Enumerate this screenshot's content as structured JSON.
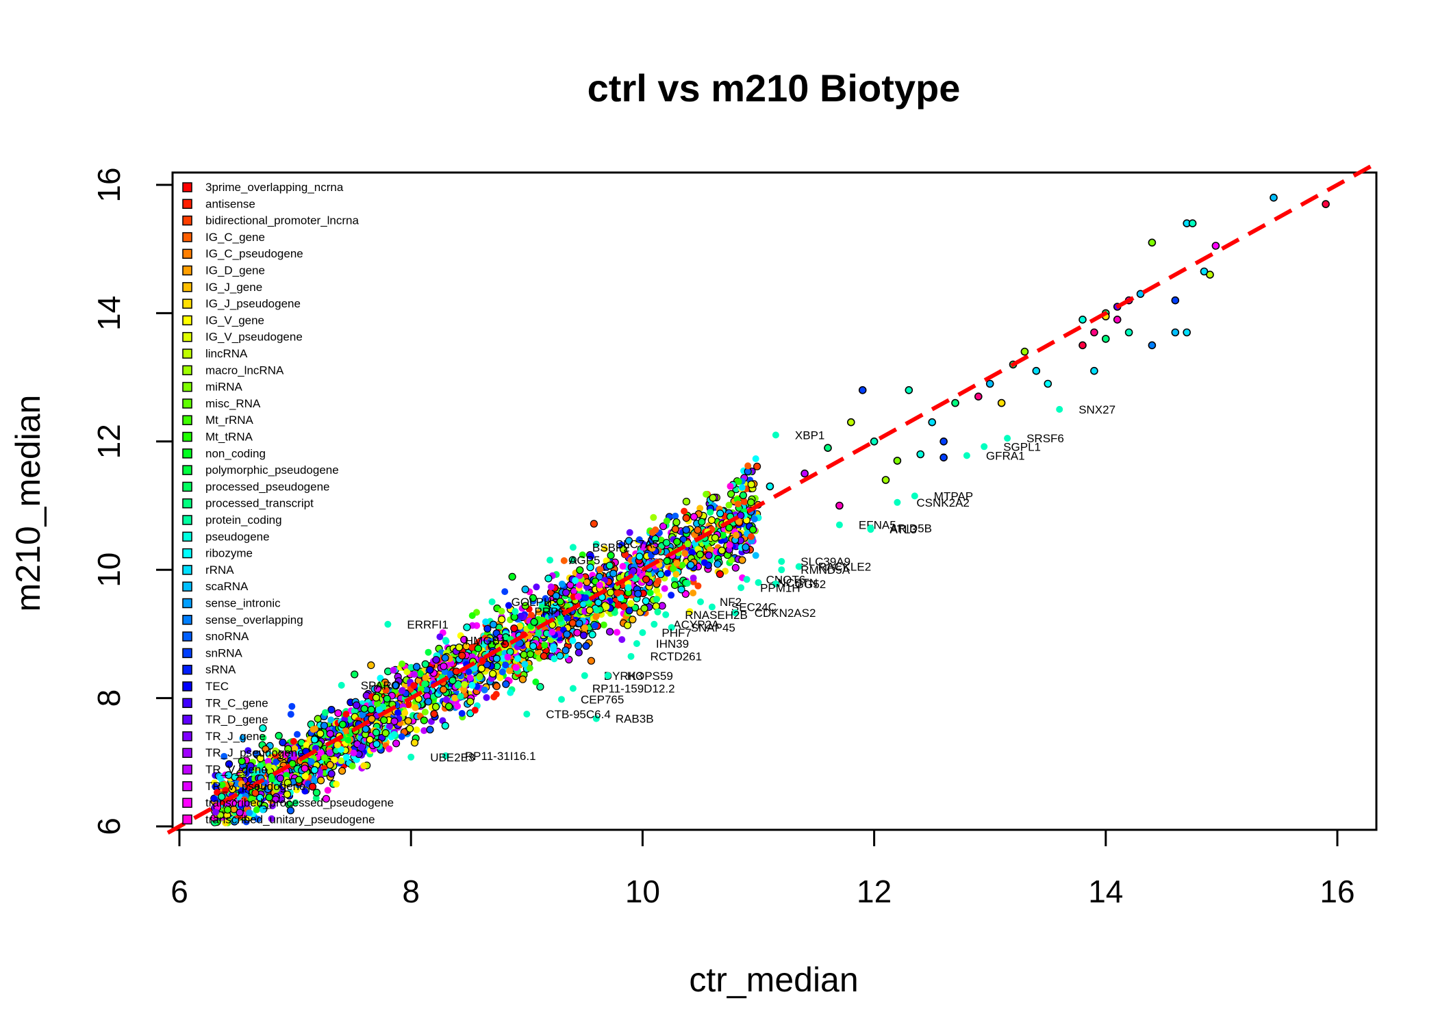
{
  "chart_data": {
    "type": "scatter",
    "title": "ctrl vs m210 Biotype",
    "xlabel": "ctr_median",
    "ylabel": "m210_median",
    "xlim": [
      6,
      16
    ],
    "ylim": [
      6,
      16
    ],
    "xticks": [
      6,
      8,
      10,
      12,
      14,
      16
    ],
    "yticks": [
      6,
      8,
      10,
      12,
      14,
      16
    ],
    "reference_line": {
      "slope": 1,
      "intercept": 0,
      "color": "#ff0000",
      "style": "dashed"
    },
    "legend_position": "top-left",
    "legend": [
      {
        "label": "3prime_overlapping_ncrna",
        "color": "#ff0000"
      },
      {
        "label": "antisense",
        "color": "#ff1f00"
      },
      {
        "label": "bidirectional_promoter_lncrna",
        "color": "#ff3f00"
      },
      {
        "label": "IG_C_gene",
        "color": "#ff5f00"
      },
      {
        "label": "IG_C_pseudogene",
        "color": "#ff7f00"
      },
      {
        "label": "IG_D_gene",
        "color": "#ff9f00"
      },
      {
        "label": "IG_J_gene",
        "color": "#ffbf00"
      },
      {
        "label": "IG_J_pseudogene",
        "color": "#ffdf00"
      },
      {
        "label": "IG_V_gene",
        "color": "#ffff00"
      },
      {
        "label": "IG_V_pseudogene",
        "color": "#dfff00"
      },
      {
        "label": "lincRNA",
        "color": "#bfff00"
      },
      {
        "label": "macro_lncRNA",
        "color": "#9fff00"
      },
      {
        "label": "miRNA",
        "color": "#7fff00"
      },
      {
        "label": "misc_RNA",
        "color": "#5fff00"
      },
      {
        "label": "Mt_rRNA",
        "color": "#3fff00"
      },
      {
        "label": "Mt_tRNA",
        "color": "#1fff00"
      },
      {
        "label": "non_coding",
        "color": "#00ff1f"
      },
      {
        "label": "polymorphic_pseudogene",
        "color": "#00ff3f"
      },
      {
        "label": "processed_pseudogene",
        "color": "#00ff5f"
      },
      {
        "label": "processed_transcript",
        "color": "#00ff7f"
      },
      {
        "label": "protein_coding",
        "color": "#00ff9f"
      },
      {
        "label": "pseudogene",
        "color": "#00ffdf"
      },
      {
        "label": "ribozyme",
        "color": "#00ffff"
      },
      {
        "label": "rRNA",
        "color": "#00dfff"
      },
      {
        "label": "scaRNA",
        "color": "#00bfff"
      },
      {
        "label": "sense_intronic",
        "color": "#009fff"
      },
      {
        "label": "sense_overlapping",
        "color": "#007fff"
      },
      {
        "label": "snoRNA",
        "color": "#005fff"
      },
      {
        "label": "snRNA",
        "color": "#003fff"
      },
      {
        "label": "sRNA",
        "color": "#001fff"
      },
      {
        "label": "TEC",
        "color": "#0000ff"
      },
      {
        "label": "TR_C_gene",
        "color": "#3f00ff"
      },
      {
        "label": "TR_D_gene",
        "color": "#5f00ff"
      },
      {
        "label": "TR_J_gene",
        "color": "#7f00ff"
      },
      {
        "label": "TR_J_pseudogene",
        "color": "#9f00ff"
      },
      {
        "label": "TR_V_gene",
        "color": "#bf00ff"
      },
      {
        "label": "TR_V_pseudogene",
        "color": "#df00ff"
      },
      {
        "label": "transcribed_processed_pseudogene",
        "color": "#ff00ff"
      },
      {
        "label": "transcribed_unitary_pseudogene",
        "color": "#ff00df"
      }
    ],
    "cluster": {
      "description": "dense cloud of gene points around identity line",
      "x_range": [
        6.3,
        11.0
      ],
      "spread": 0.45,
      "count": 2600
    },
    "points": [
      {
        "x": 15.9,
        "y": 15.7,
        "c": "#ff0040"
      },
      {
        "x": 15.45,
        "y": 15.8,
        "c": "#00bfff"
      },
      {
        "x": 14.7,
        "y": 15.4,
        "c": "#00dfff"
      },
      {
        "x": 14.75,
        "y": 15.4,
        "c": "#00ffbf"
      },
      {
        "x": 14.95,
        "y": 15.05,
        "c": "#ff00ff"
      },
      {
        "x": 14.4,
        "y": 15.1,
        "c": "#7fff00"
      },
      {
        "x": 14.85,
        "y": 14.65,
        "c": "#00dfff"
      },
      {
        "x": 14.9,
        "y": 14.6,
        "c": "#bfff00"
      },
      {
        "x": 14.3,
        "y": 14.3,
        "c": "#00bfff"
      },
      {
        "x": 14.6,
        "y": 14.2,
        "c": "#003fff"
      },
      {
        "x": 14.2,
        "y": 14.2,
        "c": "#ff00bf"
      },
      {
        "x": 14.1,
        "y": 14.1,
        "c": "#5f00ff"
      },
      {
        "x": 14.0,
        "y": 14.0,
        "c": "#00ff7f"
      },
      {
        "x": 13.8,
        "y": 13.9,
        "c": "#00ffdf"
      },
      {
        "x": 14.0,
        "y": 13.95,
        "c": "#ffdf00"
      },
      {
        "x": 14.1,
        "y": 13.9,
        "c": "#ff00bf"
      },
      {
        "x": 13.9,
        "y": 13.7,
        "c": "#ff0080"
      },
      {
        "x": 14.2,
        "y": 13.7,
        "c": "#00ffbf"
      },
      {
        "x": 14.6,
        "y": 13.7,
        "c": "#00bfff"
      },
      {
        "x": 14.7,
        "y": 13.7,
        "c": "#00dfff"
      },
      {
        "x": 14.4,
        "y": 13.5,
        "c": "#007fff"
      },
      {
        "x": 13.8,
        "y": 13.5,
        "c": "#ff0040"
      },
      {
        "x": 14.0,
        "y": 13.6,
        "c": "#00ff7f"
      },
      {
        "x": 13.3,
        "y": 13.4,
        "c": "#9fff00"
      },
      {
        "x": 13.2,
        "y": 13.2,
        "c": "#00ff7f"
      },
      {
        "x": 13.4,
        "y": 13.1,
        "c": "#00dfff"
      },
      {
        "x": 13.9,
        "y": 13.1,
        "c": "#00dfff"
      },
      {
        "x": 13.5,
        "y": 12.9,
        "c": "#00ffff"
      },
      {
        "x": 13.0,
        "y": 12.9,
        "c": "#00bfff"
      },
      {
        "x": 12.9,
        "y": 12.7,
        "c": "#ff0080"
      },
      {
        "x": 12.3,
        "y": 12.8,
        "c": "#00ffbf"
      },
      {
        "x": 11.9,
        "y": 12.8,
        "c": "#003fff"
      },
      {
        "x": 12.7,
        "y": 12.6,
        "c": "#00ff7f"
      },
      {
        "x": 13.1,
        "y": 12.6,
        "c": "#ffdf00"
      },
      {
        "x": 11.8,
        "y": 12.3,
        "c": "#bfff00"
      },
      {
        "x": 12.0,
        "y": 12.0,
        "c": "#00ffbf"
      },
      {
        "x": 12.5,
        "y": 12.3,
        "c": "#00dfff"
      },
      {
        "x": 12.6,
        "y": 12.0,
        "c": "#003fff"
      },
      {
        "x": 12.2,
        "y": 11.7,
        "c": "#7fff00"
      },
      {
        "x": 11.6,
        "y": 11.9,
        "c": "#00ff7f"
      },
      {
        "x": 11.4,
        "y": 11.5,
        "c": "#bf00ff"
      },
      {
        "x": 12.4,
        "y": 11.8,
        "c": "#00ffdf"
      },
      {
        "x": 12.6,
        "y": 11.75,
        "c": "#003fff"
      },
      {
        "x": 11.7,
        "y": 11.0,
        "c": "#ff00bf"
      },
      {
        "x": 11.1,
        "y": 11.3,
        "c": "#00ffff"
      },
      {
        "x": 12.1,
        "y": 11.4,
        "c": "#9fff00"
      }
    ],
    "labeled_points": [
      {
        "name": "SNX27",
        "x": 13.6,
        "y": 12.5
      },
      {
        "name": "XBP1",
        "x": 11.15,
        "y": 12.1
      },
      {
        "name": "SRSF6",
        "x": 13.15,
        "y": 12.05
      },
      {
        "name": "SGPL1",
        "x": 12.95,
        "y": 11.92
      },
      {
        "name": "GFRA1",
        "x": 12.8,
        "y": 11.78
      },
      {
        "name": "MTPAP",
        "x": 12.35,
        "y": 11.15
      },
      {
        "name": "CSNK2A2",
        "x": 12.2,
        "y": 11.05
      },
      {
        "name": "EFNA5",
        "x": 11.7,
        "y": 10.7
      },
      {
        "name": "ARID5B",
        "x": 11.97,
        "y": 10.65
      },
      {
        "name": "ATL3",
        "x": 11.97,
        "y": 10.63
      },
      {
        "name": "SLC39A9",
        "x": 11.2,
        "y": 10.13
      },
      {
        "name": "RACKLE2",
        "x": 11.35,
        "y": 10.05
      },
      {
        "name": "RMND5A",
        "x": 11.2,
        "y": 10.0
      },
      {
        "name": "CNOT6",
        "x": 10.9,
        "y": 9.85
      },
      {
        "name": "NCSTN",
        "x": 11.0,
        "y": 9.8
      },
      {
        "name": "GG52",
        "x": 11.15,
        "y": 9.78
      },
      {
        "name": "PPM1H",
        "x": 10.85,
        "y": 9.72
      },
      {
        "name": "NF2",
        "x": 10.5,
        "y": 9.5
      },
      {
        "name": "SEC24C",
        "x": 10.6,
        "y": 9.42
      },
      {
        "name": "CDKN2AS2",
        "x": 10.8,
        "y": 9.33
      },
      {
        "name": "RNASEH2B",
        "x": 10.2,
        "y": 9.3
      },
      {
        "name": "ACYP2A",
        "x": 10.1,
        "y": 9.15
      },
      {
        "name": "SNAP45",
        "x": 10.25,
        "y": 9.1
      },
      {
        "name": "PHF7",
        "x": 10.0,
        "y": 9.02
      },
      {
        "name": "IHN39",
        "x": 9.95,
        "y": 8.85
      },
      {
        "name": "RCTD261",
        "x": 9.9,
        "y": 8.65
      },
      {
        "name": "DYRK3",
        "x": 9.5,
        "y": 8.35
      },
      {
        "name": "HOPS59",
        "x": 9.7,
        "y": 8.35
      },
      {
        "name": "RP11-159D12.2",
        "x": 9.4,
        "y": 8.15
      },
      {
        "name": "CEP765",
        "x": 9.3,
        "y": 7.98
      },
      {
        "name": "RAB3B",
        "x": 9.6,
        "y": 7.68
      },
      {
        "name": "CTB-95C6.4",
        "x": 9.0,
        "y": 7.75
      },
      {
        "name": "RP11-31I16.1",
        "x": 8.3,
        "y": 7.1
      },
      {
        "name": "UBE2E3",
        "x": 8.0,
        "y": 7.08
      },
      {
        "name": "ERRFI1",
        "x": 7.8,
        "y": 9.15
      },
      {
        "name": "AGP5",
        "x": 9.2,
        "y": 10.15
      },
      {
        "name": "SLC7A5",
        "x": 9.6,
        "y": 10.4
      },
      {
        "name": "BSBP2",
        "x": 9.4,
        "y": 10.35
      },
      {
        "name": "GOLPH3",
        "x": 8.7,
        "y": 9.5
      },
      {
        "name": "PRPF8",
        "x": 8.9,
        "y": 9.35
      },
      {
        "name": "HMGB1",
        "x": 8.3,
        "y": 8.9
      },
      {
        "name": "SPARC",
        "x": 7.4,
        "y": 8.2
      }
    ]
  }
}
